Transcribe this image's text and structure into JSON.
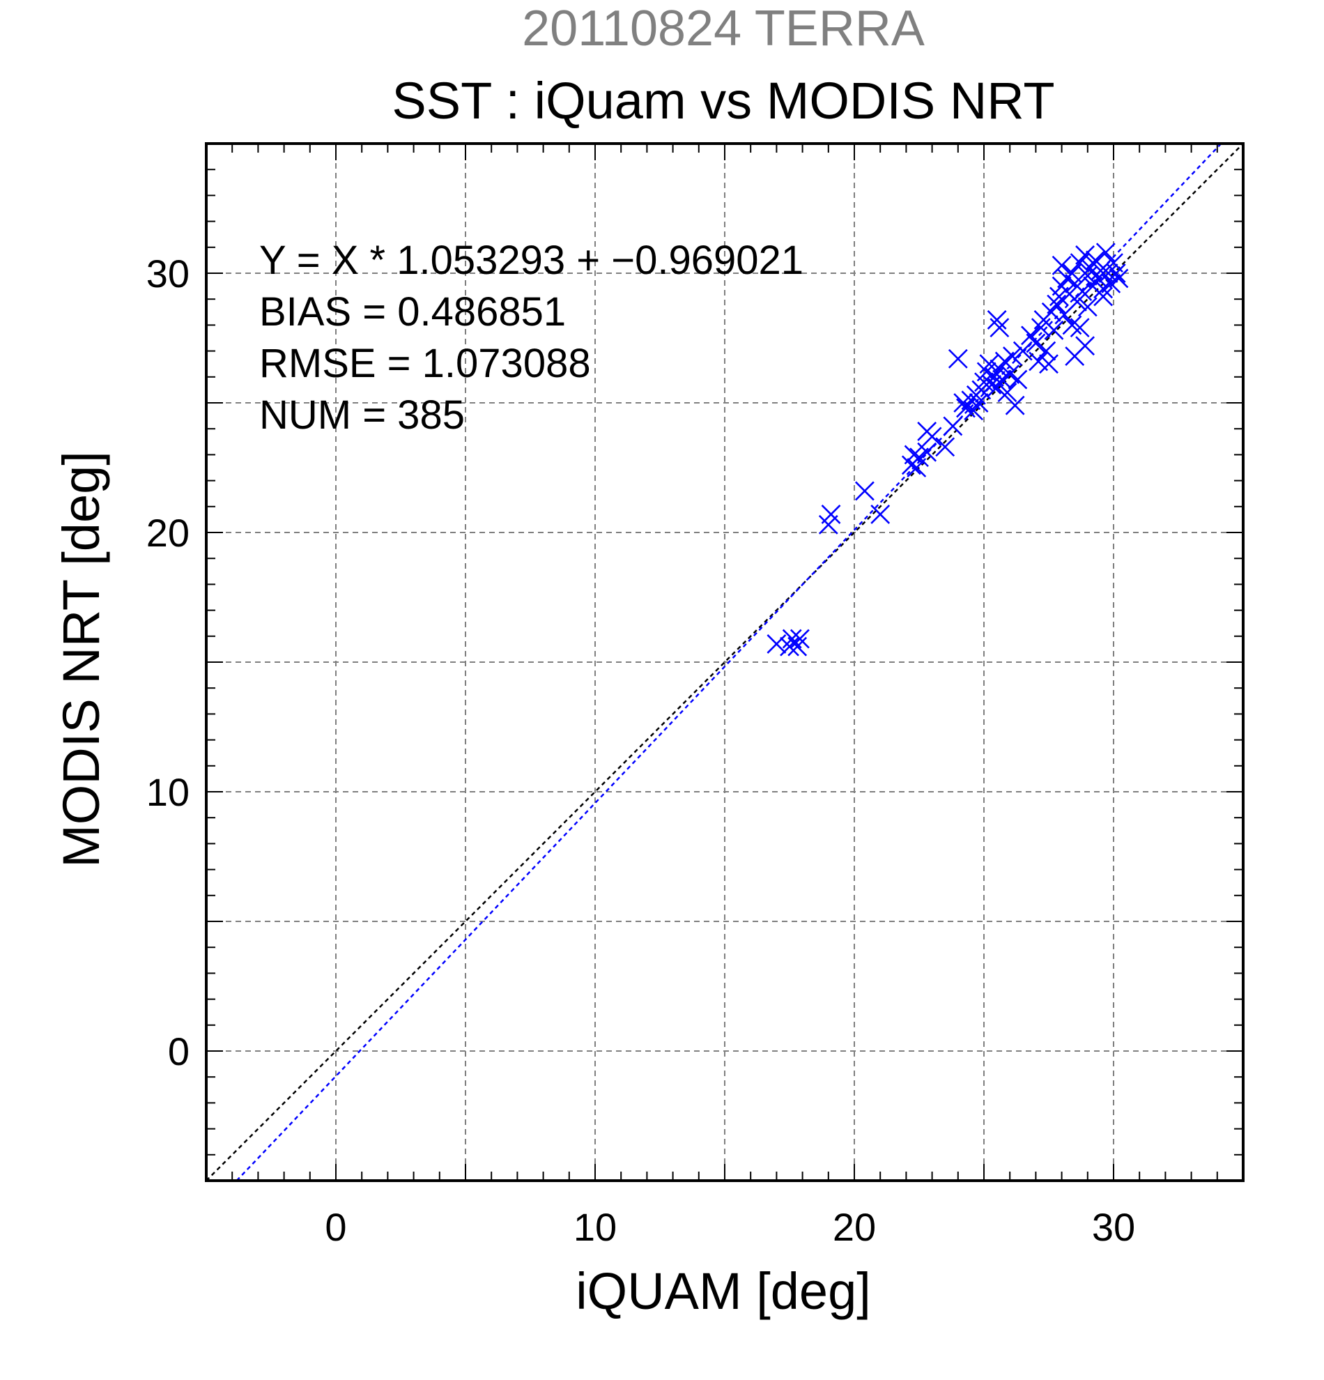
{
  "chart_data": {
    "type": "scatter",
    "supertitle": "20110824 TERRA",
    "title": "SST : iQuam vs MODIS NRT",
    "xlabel": "iQUAM [deg]",
    "ylabel": "MODIS NRT [deg]",
    "xlim": [
      -5,
      35
    ],
    "ylim": [
      -5,
      35
    ],
    "xticks": [
      0,
      10,
      20,
      30
    ],
    "yticks": [
      0,
      10,
      20,
      30
    ],
    "grid_step": 5,
    "minor_tick_step": 1,
    "grid": true,
    "marker": "x",
    "point_color": "#0000ff",
    "stats": {
      "equation": "Y = X * 1.053293 + −0.969021",
      "bias": "BIAS = 0.486851",
      "rmse": "RMSE = 1.073088",
      "num": "NUM = 385"
    },
    "lines": [
      {
        "kind": "identity",
        "slope": 1,
        "intercept": 0,
        "color": "#000000"
      },
      {
        "kind": "regression",
        "slope": 1.053293,
        "intercept": -0.969021,
        "color": "#0000ff"
      }
    ],
    "points": [
      [
        17.0,
        15.7
      ],
      [
        17.5,
        15.6
      ],
      [
        17.6,
        15.9
      ],
      [
        17.8,
        15.6
      ],
      [
        17.9,
        15.9
      ],
      [
        19.0,
        20.3
      ],
      [
        19.1,
        20.7
      ],
      [
        20.4,
        21.6
      ],
      [
        21.0,
        20.7
      ],
      [
        22.2,
        22.6
      ],
      [
        22.3,
        23.0
      ],
      [
        22.4,
        22.5
      ],
      [
        22.5,
        22.9
      ],
      [
        22.8,
        23.1
      ],
      [
        22.8,
        23.9
      ],
      [
        23.0,
        23.7
      ],
      [
        23.5,
        23.3
      ],
      [
        23.8,
        24.1
      ],
      [
        24.0,
        26.7
      ],
      [
        24.2,
        25.0
      ],
      [
        24.3,
        24.8
      ],
      [
        24.5,
        25.1
      ],
      [
        24.6,
        24.7
      ],
      [
        24.7,
        25.3
      ],
      [
        24.8,
        25.0
      ],
      [
        24.9,
        25.5
      ],
      [
        25.0,
        25.8
      ],
      [
        25.1,
        26.2
      ],
      [
        25.2,
        26.5
      ],
      [
        25.3,
        25.7
      ],
      [
        25.4,
        26.0
      ],
      [
        25.5,
        28.2
      ],
      [
        25.6,
        27.9
      ],
      [
        25.5,
        25.6
      ],
      [
        25.6,
        26.3
      ],
      [
        25.7,
        25.9
      ],
      [
        25.8,
        26.6
      ],
      [
        25.9,
        25.4
      ],
      [
        26.0,
        26.1
      ],
      [
        26.1,
        26.8
      ],
      [
        26.2,
        24.9
      ],
      [
        26.3,
        25.9
      ],
      [
        26.5,
        27.0
      ],
      [
        26.8,
        27.6
      ],
      [
        27.0,
        27.3
      ],
      [
        27.1,
        26.6
      ],
      [
        27.2,
        27.9
      ],
      [
        27.3,
        28.2
      ],
      [
        27.4,
        27.0
      ],
      [
        27.5,
        26.5
      ],
      [
        27.6,
        28.5
      ],
      [
        27.7,
        27.8
      ],
      [
        27.8,
        28.8
      ],
      [
        27.9,
        29.1
      ],
      [
        28.0,
        29.5
      ],
      [
        28.0,
        30.3
      ],
      [
        28.1,
        28.4
      ],
      [
        28.2,
        29.8
      ],
      [
        28.3,
        29.2
      ],
      [
        28.4,
        28.0
      ],
      [
        28.4,
        30.0
      ],
      [
        28.5,
        29.6
      ],
      [
        28.6,
        28.9
      ],
      [
        28.7,
        30.4
      ],
      [
        28.7,
        27.9
      ],
      [
        28.8,
        29.3
      ],
      [
        28.9,
        30.7
      ],
      [
        29.0,
        29.9
      ],
      [
        29.0,
        28.7
      ],
      [
        29.1,
        30.2
      ],
      [
        29.2,
        29.5
      ],
      [
        29.3,
        30.5
      ],
      [
        29.4,
        29.8
      ],
      [
        29.5,
        30.1
      ],
      [
        29.6,
        29.4
      ],
      [
        29.7,
        30.8
      ],
      [
        29.8,
        30.0
      ],
      [
        29.9,
        29.6
      ],
      [
        30.0,
        30.4
      ],
      [
        30.1,
        30.0
      ],
      [
        30.2,
        29.8
      ],
      [
        29.6,
        29.1
      ],
      [
        28.5,
        26.8
      ],
      [
        28.9,
        27.2
      ]
    ]
  }
}
